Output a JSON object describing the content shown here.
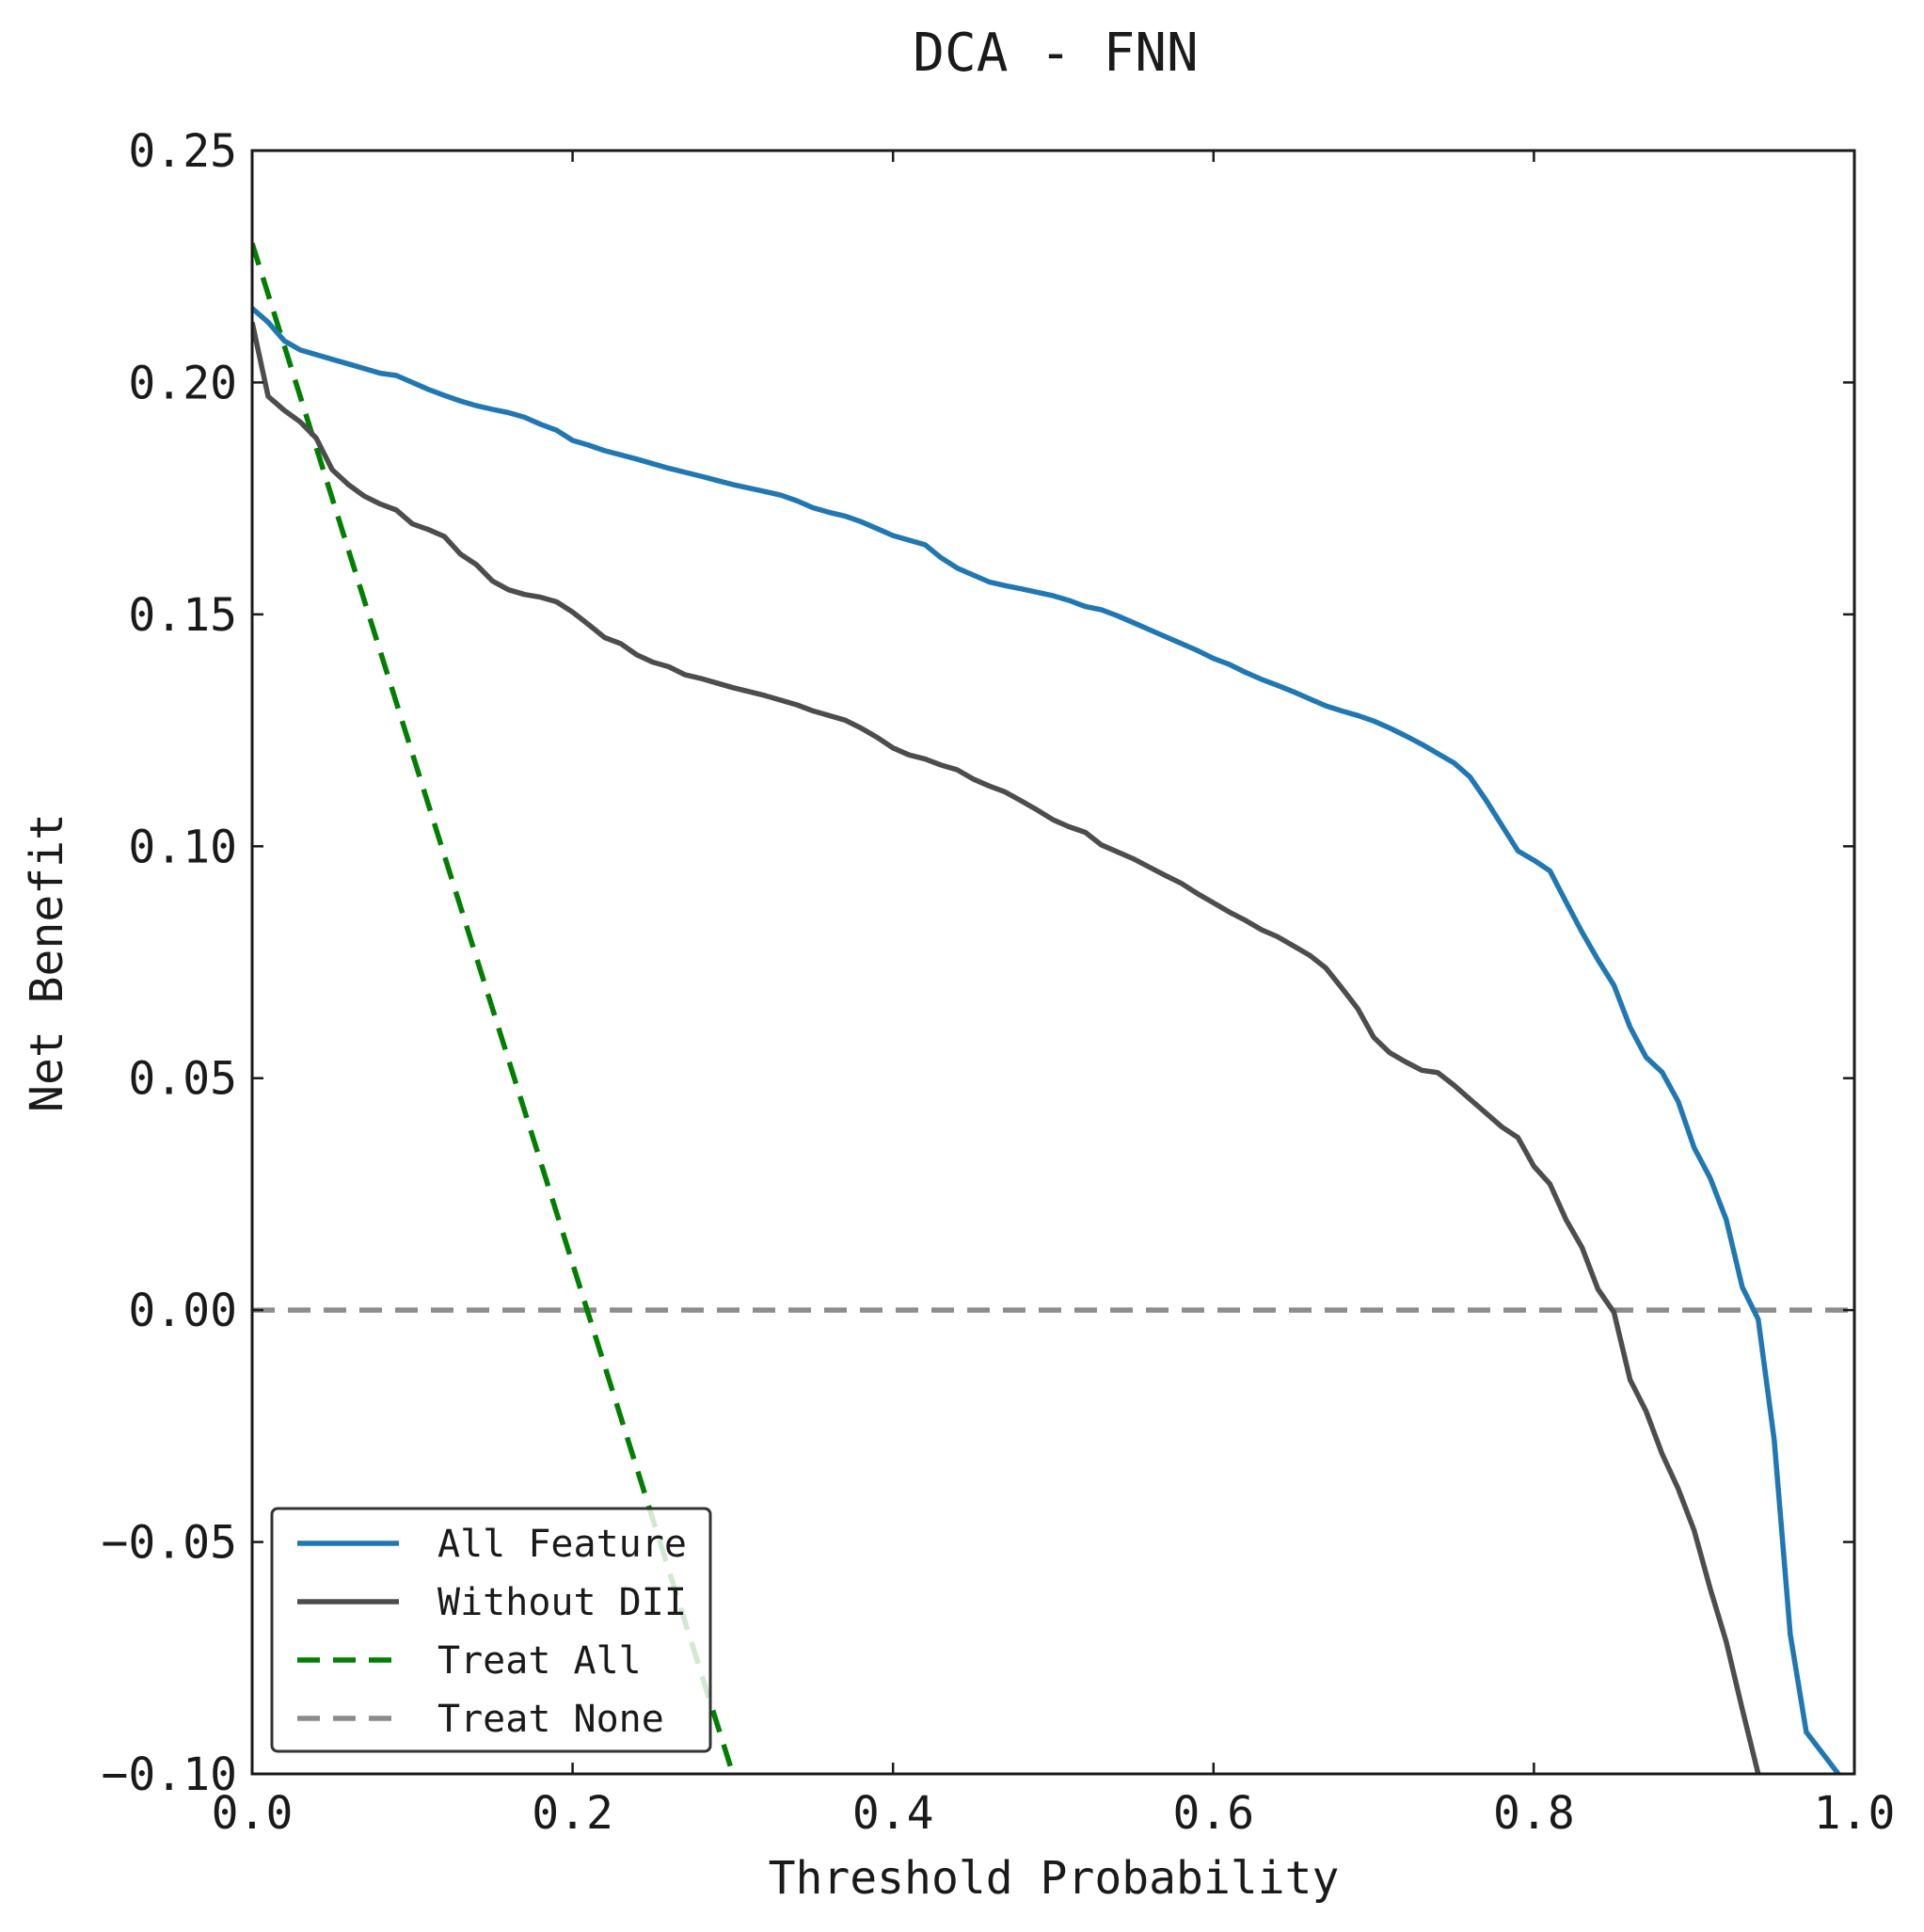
{
  "chart_data": {
    "type": "line",
    "title": "DCA - FNN",
    "xlabel": "Threshold Probability",
    "ylabel": "Net Benefit",
    "xlim": [
      0.0,
      1.0
    ],
    "ylim": [
      -0.1,
      0.25
    ],
    "xticks": [
      "0.0",
      "0.2",
      "0.4",
      "0.6",
      "0.8",
      "1.0"
    ],
    "yticks": [
      "−0.10",
      "−0.05",
      "0.00",
      "0.05",
      "0.10",
      "0.15",
      "0.20",
      "0.25"
    ],
    "grid": false,
    "legend_position": "lower-left",
    "series": [
      {
        "name": "All Feature",
        "color": "#1f77b4",
        "dash": "solid",
        "points": [
          [
            0.0,
            0.216
          ],
          [
            0.01,
            0.213
          ],
          [
            0.02,
            0.209
          ],
          [
            0.03,
            0.207
          ],
          [
            0.05,
            0.205
          ],
          [
            0.06,
            0.204
          ],
          [
            0.07,
            0.203
          ],
          [
            0.08,
            0.202
          ],
          [
            0.09,
            0.2015
          ],
          [
            0.1,
            0.2
          ],
          [
            0.11,
            0.1985
          ],
          [
            0.12,
            0.1972
          ],
          [
            0.13,
            0.196
          ],
          [
            0.14,
            0.195
          ],
          [
            0.15,
            0.1942
          ],
          [
            0.16,
            0.1935
          ],
          [
            0.17,
            0.1925
          ],
          [
            0.18,
            0.191
          ],
          [
            0.19,
            0.1897
          ],
          [
            0.2,
            0.1875
          ],
          [
            0.21,
            0.1865
          ],
          [
            0.22,
            0.1853
          ],
          [
            0.24,
            0.1835
          ],
          [
            0.26,
            0.1815
          ],
          [
            0.28,
            0.1798
          ],
          [
            0.3,
            0.178
          ],
          [
            0.32,
            0.1765
          ],
          [
            0.33,
            0.1757
          ],
          [
            0.34,
            0.1745
          ],
          [
            0.35,
            0.173
          ],
          [
            0.36,
            0.172
          ],
          [
            0.37,
            0.1712
          ],
          [
            0.38,
            0.17
          ],
          [
            0.39,
            0.1685
          ],
          [
            0.4,
            0.167
          ],
          [
            0.42,
            0.165
          ],
          [
            0.43,
            0.1622
          ],
          [
            0.44,
            0.16
          ],
          [
            0.45,
            0.1585
          ],
          [
            0.46,
            0.157
          ],
          [
            0.47,
            0.1562
          ],
          [
            0.48,
            0.1555
          ],
          [
            0.5,
            0.154
          ],
          [
            0.51,
            0.153
          ],
          [
            0.52,
            0.1517
          ],
          [
            0.53,
            0.151
          ],
          [
            0.54,
            0.1497
          ],
          [
            0.55,
            0.1482
          ],
          [
            0.56,
            0.1467
          ],
          [
            0.57,
            0.1452
          ],
          [
            0.58,
            0.1437
          ],
          [
            0.59,
            0.1422
          ],
          [
            0.6,
            0.1405
          ],
          [
            0.61,
            0.1392
          ],
          [
            0.62,
            0.1375
          ],
          [
            0.63,
            0.136
          ],
          [
            0.64,
            0.1347
          ],
          [
            0.65,
            0.1333
          ],
          [
            0.66,
            0.1318
          ],
          [
            0.67,
            0.1303
          ],
          [
            0.68,
            0.1292
          ],
          [
            0.69,
            0.1282
          ],
          [
            0.7,
            0.127
          ],
          [
            0.71,
            0.1255
          ],
          [
            0.72,
            0.1238
          ],
          [
            0.73,
            0.122
          ],
          [
            0.74,
            0.12
          ],
          [
            0.75,
            0.118
          ],
          [
            0.76,
            0.115
          ],
          [
            0.77,
            0.11
          ],
          [
            0.78,
            0.1045
          ],
          [
            0.79,
            0.099
          ],
          [
            0.8,
            0.097
          ],
          [
            0.81,
            0.0947
          ],
          [
            0.82,
            0.088
          ],
          [
            0.83,
            0.0815
          ],
          [
            0.84,
            0.0755
          ],
          [
            0.85,
            0.07
          ],
          [
            0.86,
            0.061
          ],
          [
            0.87,
            0.0545
          ],
          [
            0.88,
            0.0513
          ],
          [
            0.89,
            0.045
          ],
          [
            0.9,
            0.035
          ],
          [
            0.91,
            0.0285
          ],
          [
            0.92,
            0.0195
          ],
          [
            0.93,
            0.005
          ],
          [
            0.94,
            -0.002
          ],
          [
            0.95,
            -0.028
          ],
          [
            0.96,
            -0.07
          ],
          [
            0.97,
            -0.091
          ],
          [
            0.99,
            -0.1
          ]
        ]
      },
      {
        "name": "Without DII",
        "color": "#4d4d4d",
        "dash": "solid",
        "points": [
          [
            0.0,
            0.213
          ],
          [
            0.01,
            0.197
          ],
          [
            0.02,
            0.194
          ],
          [
            0.03,
            0.1915
          ],
          [
            0.04,
            0.188
          ],
          [
            0.05,
            0.1812
          ],
          [
            0.06,
            0.178
          ],
          [
            0.07,
            0.1755
          ],
          [
            0.08,
            0.1738
          ],
          [
            0.09,
            0.1725
          ],
          [
            0.1,
            0.1695
          ],
          [
            0.11,
            0.1683
          ],
          [
            0.12,
            0.1668
          ],
          [
            0.13,
            0.163
          ],
          [
            0.14,
            0.1607
          ],
          [
            0.15,
            0.1572
          ],
          [
            0.16,
            0.1553
          ],
          [
            0.17,
            0.1543
          ],
          [
            0.18,
            0.1537
          ],
          [
            0.19,
            0.1527
          ],
          [
            0.2,
            0.1505
          ],
          [
            0.21,
            0.1478
          ],
          [
            0.22,
            0.145
          ],
          [
            0.23,
            0.1437
          ],
          [
            0.24,
            0.1413
          ],
          [
            0.25,
            0.1397
          ],
          [
            0.26,
            0.1387
          ],
          [
            0.27,
            0.137
          ],
          [
            0.28,
            0.1362
          ],
          [
            0.29,
            0.1352
          ],
          [
            0.3,
            0.1342
          ],
          [
            0.32,
            0.1325
          ],
          [
            0.34,
            0.1305
          ],
          [
            0.35,
            0.1292
          ],
          [
            0.37,
            0.1272
          ],
          [
            0.38,
            0.1255
          ],
          [
            0.39,
            0.1235
          ],
          [
            0.4,
            0.1212
          ],
          [
            0.41,
            0.1197
          ],
          [
            0.42,
            0.1188
          ],
          [
            0.43,
            0.1175
          ],
          [
            0.44,
            0.1165
          ],
          [
            0.45,
            0.1145
          ],
          [
            0.46,
            0.113
          ],
          [
            0.47,
            0.1117
          ],
          [
            0.48,
            0.1098
          ],
          [
            0.49,
            0.1078
          ],
          [
            0.5,
            0.1057
          ],
          [
            0.51,
            0.1042
          ],
          [
            0.52,
            0.103
          ],
          [
            0.53,
            0.1003
          ],
          [
            0.54,
            0.0988
          ],
          [
            0.55,
            0.0973
          ],
          [
            0.56,
            0.0955
          ],
          [
            0.57,
            0.0937
          ],
          [
            0.58,
            0.092
          ],
          [
            0.59,
            0.0898
          ],
          [
            0.6,
            0.0878
          ],
          [
            0.61,
            0.0858
          ],
          [
            0.62,
            0.084
          ],
          [
            0.63,
            0.082
          ],
          [
            0.64,
            0.0805
          ],
          [
            0.65,
            0.0785
          ],
          [
            0.66,
            0.0765
          ],
          [
            0.67,
            0.0738
          ],
          [
            0.68,
            0.0695
          ],
          [
            0.69,
            0.065
          ],
          [
            0.7,
            0.0588
          ],
          [
            0.71,
            0.0555
          ],
          [
            0.72,
            0.0535
          ],
          [
            0.73,
            0.0517
          ],
          [
            0.74,
            0.0512
          ],
          [
            0.75,
            0.0485
          ],
          [
            0.76,
            0.0455
          ],
          [
            0.77,
            0.0425
          ],
          [
            0.78,
            0.0395
          ],
          [
            0.79,
            0.0372
          ],
          [
            0.8,
            0.031
          ],
          [
            0.81,
            0.0272
          ],
          [
            0.82,
            0.0195
          ],
          [
            0.83,
            0.0135
          ],
          [
            0.84,
            0.0045
          ],
          [
            0.85,
            -0.0005
          ],
          [
            0.86,
            -0.015
          ],
          [
            0.87,
            -0.0218
          ],
          [
            0.88,
            -0.031
          ],
          [
            0.89,
            -0.0385
          ],
          [
            0.9,
            -0.0475
          ],
          [
            0.91,
            -0.06
          ],
          [
            0.92,
            -0.0715
          ],
          [
            0.93,
            -0.086
          ],
          [
            0.94,
            -0.1
          ]
        ]
      },
      {
        "name": "Treat All",
        "color": "#007f00",
        "dash": "dashed",
        "points": [
          [
            0.0,
            0.23
          ],
          [
            0.3,
            -0.1
          ]
        ]
      },
      {
        "name": "Treat None",
        "color": "#8c8c8c",
        "dash": "dashed",
        "points": [
          [
            0.0,
            0.0
          ],
          [
            1.0,
            0.0
          ]
        ]
      }
    ]
  }
}
